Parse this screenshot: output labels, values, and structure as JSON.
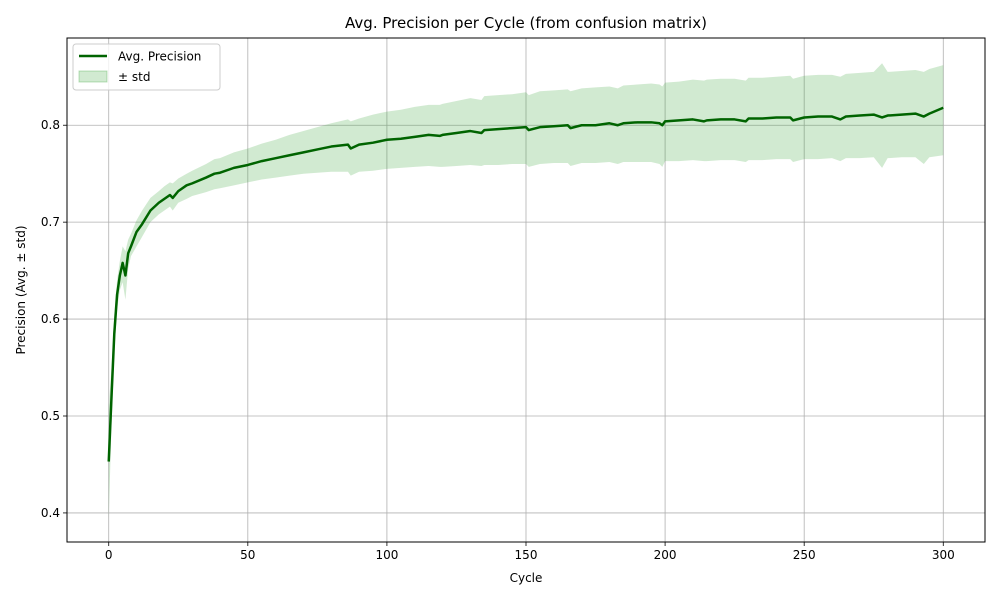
{
  "chart_data": {
    "type": "line",
    "title": "Avg. Precision per Cycle (from confusion matrix)",
    "xlabel": "Cycle",
    "ylabel": "Precision (Avg. ± std)",
    "xlim": [
      -15,
      315
    ],
    "ylim": [
      0.37,
      0.89
    ],
    "xticks": [
      0,
      50,
      100,
      150,
      200,
      250,
      300
    ],
    "yticks": [
      0.4,
      0.5,
      0.6,
      0.7,
      0.8
    ],
    "ytick_labels": [
      "0.4",
      "0.5",
      "0.6",
      "0.7",
      "0.8"
    ],
    "grid": true,
    "legend_position": "top-left",
    "series": [
      {
        "name": "Avg. Precision",
        "kind": "line",
        "color": "#006400",
        "x": [
          0,
          1,
          2,
          3,
          4,
          5,
          6,
          7,
          8,
          10,
          12,
          15,
          18,
          20,
          22,
          23,
          25,
          28,
          30,
          35,
          38,
          40,
          45,
          50,
          55,
          60,
          65,
          70,
          75,
          80,
          86,
          87,
          90,
          95,
          100,
          105,
          110,
          115,
          119,
          120,
          125,
          130,
          134,
          135,
          140,
          145,
          150,
          151,
          155,
          160,
          165,
          166,
          170,
          175,
          180,
          183,
          185,
          190,
          195,
          198,
          199,
          200,
          205,
          210,
          214,
          215,
          220,
          225,
          229,
          230,
          235,
          240,
          245,
          246,
          250,
          255,
          260,
          263,
          265,
          270,
          275,
          278,
          280,
          285,
          290,
          293,
          295,
          300
        ],
        "y": [
          0.453,
          0.52,
          0.585,
          0.625,
          0.645,
          0.658,
          0.645,
          0.668,
          0.675,
          0.69,
          0.698,
          0.712,
          0.72,
          0.724,
          0.728,
          0.725,
          0.732,
          0.738,
          0.74,
          0.746,
          0.75,
          0.751,
          0.756,
          0.759,
          0.763,
          0.766,
          0.769,
          0.772,
          0.775,
          0.778,
          0.78,
          0.776,
          0.78,
          0.782,
          0.785,
          0.786,
          0.788,
          0.79,
          0.789,
          0.79,
          0.792,
          0.794,
          0.792,
          0.795,
          0.796,
          0.797,
          0.798,
          0.795,
          0.798,
          0.799,
          0.8,
          0.797,
          0.8,
          0.8,
          0.802,
          0.8,
          0.802,
          0.803,
          0.803,
          0.802,
          0.8,
          0.804,
          0.805,
          0.806,
          0.804,
          0.805,
          0.806,
          0.806,
          0.804,
          0.807,
          0.807,
          0.808,
          0.808,
          0.805,
          0.808,
          0.809,
          0.809,
          0.806,
          0.809,
          0.81,
          0.811,
          0.808,
          0.81,
          0.811,
          0.812,
          0.809,
          0.812,
          0.818
        ]
      },
      {
        "name": "± std",
        "kind": "band",
        "color": "#2ca02c",
        "opacity": 0.22,
        "x": [
          0,
          1,
          2,
          3,
          4,
          5,
          6,
          7,
          8,
          10,
          12,
          15,
          18,
          20,
          22,
          23,
          25,
          28,
          30,
          35,
          38,
          40,
          45,
          50,
          55,
          60,
          65,
          70,
          75,
          80,
          86,
          87,
          90,
          95,
          100,
          105,
          110,
          115,
          119,
          120,
          125,
          130,
          134,
          135,
          140,
          145,
          150,
          151,
          155,
          160,
          165,
          166,
          170,
          175,
          180,
          183,
          185,
          190,
          195,
          198,
          199,
          200,
          205,
          210,
          214,
          215,
          220,
          225,
          229,
          230,
          235,
          240,
          245,
          246,
          250,
          255,
          260,
          263,
          265,
          270,
          275,
          278,
          280,
          285,
          290,
          293,
          295,
          300
        ],
        "lower": [
          0.395,
          0.49,
          0.565,
          0.61,
          0.63,
          0.638,
          0.62,
          0.652,
          0.665,
          0.675,
          0.685,
          0.7,
          0.708,
          0.712,
          0.716,
          0.712,
          0.72,
          0.724,
          0.727,
          0.731,
          0.734,
          0.735,
          0.738,
          0.741,
          0.744,
          0.746,
          0.748,
          0.75,
          0.751,
          0.752,
          0.752,
          0.748,
          0.752,
          0.753,
          0.755,
          0.756,
          0.757,
          0.758,
          0.757,
          0.757,
          0.758,
          0.759,
          0.758,
          0.759,
          0.759,
          0.76,
          0.76,
          0.757,
          0.76,
          0.761,
          0.761,
          0.758,
          0.761,
          0.761,
          0.762,
          0.76,
          0.762,
          0.762,
          0.762,
          0.76,
          0.757,
          0.763,
          0.763,
          0.764,
          0.763,
          0.763,
          0.764,
          0.764,
          0.762,
          0.764,
          0.764,
          0.765,
          0.765,
          0.762,
          0.765,
          0.765,
          0.766,
          0.763,
          0.766,
          0.766,
          0.767,
          0.756,
          0.766,
          0.767,
          0.767,
          0.76,
          0.767,
          0.769
        ],
        "upper": [
          0.51,
          0.55,
          0.605,
          0.64,
          0.66,
          0.675,
          0.67,
          0.682,
          0.688,
          0.702,
          0.712,
          0.725,
          0.732,
          0.737,
          0.741,
          0.74,
          0.745,
          0.75,
          0.753,
          0.76,
          0.765,
          0.766,
          0.772,
          0.776,
          0.781,
          0.785,
          0.79,
          0.794,
          0.798,
          0.802,
          0.806,
          0.804,
          0.807,
          0.811,
          0.814,
          0.816,
          0.819,
          0.821,
          0.821,
          0.822,
          0.825,
          0.828,
          0.826,
          0.83,
          0.831,
          0.832,
          0.834,
          0.831,
          0.835,
          0.836,
          0.837,
          0.835,
          0.838,
          0.839,
          0.84,
          0.838,
          0.841,
          0.842,
          0.843,
          0.842,
          0.84,
          0.844,
          0.845,
          0.847,
          0.846,
          0.847,
          0.848,
          0.848,
          0.846,
          0.849,
          0.849,
          0.85,
          0.851,
          0.848,
          0.851,
          0.852,
          0.852,
          0.85,
          0.853,
          0.854,
          0.855,
          0.864,
          0.855,
          0.856,
          0.857,
          0.855,
          0.858,
          0.862
        ]
      }
    ]
  }
}
